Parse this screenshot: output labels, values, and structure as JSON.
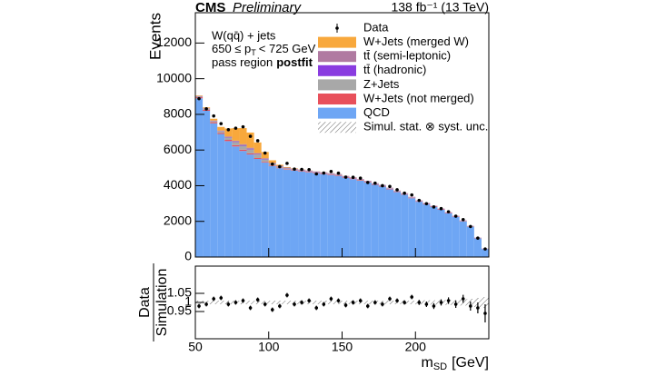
{
  "chart_data": [
    {
      "type": "stacked_histogram",
      "experiment": "CMS",
      "status": "Preliminary",
      "lumi": "138 fb⁻¹ (13 TeV)",
      "annotations": {
        "process": "W(qq̄) + jets",
        "pt_low": "650 ≤ p",
        "pt_sub": "T",
        "pt_high": "< 725 GeV",
        "region": "pass region",
        "fit": "postfit"
      },
      "ylabel": "Events",
      "bins": [
        50,
        55,
        60,
        65,
        70,
        75,
        80,
        85,
        90,
        95,
        100,
        105,
        110,
        115,
        120,
        125,
        130,
        135,
        140,
        145,
        150,
        155,
        160,
        165,
        170,
        175,
        180,
        185,
        190,
        195,
        200,
        205,
        210,
        215,
        220,
        225,
        230,
        235,
        240,
        245,
        250
      ],
      "xlim": [
        50,
        250
      ],
      "ylim": [
        0,
        13700
      ],
      "yticks": [
        0,
        2000,
        4000,
        6000,
        8000,
        10000,
        12000
      ],
      "series": [
        {
          "name": "QCD",
          "color": "#6ea6f4",
          "values": [
            8900,
            8200,
            7500,
            6900,
            6500,
            6200,
            5950,
            5750,
            5500,
            5300,
            5100,
            4980,
            4900,
            4850,
            4800,
            4750,
            4700,
            4650,
            4600,
            4550,
            4450,
            4370,
            4280,
            4180,
            4050,
            3950,
            3800,
            3650,
            3500,
            3300,
            3100,
            2950,
            2800,
            2650,
            2450,
            2250,
            2000,
            1700,
            1050,
            450
          ]
        },
        {
          "name": "W+Jets (not merged)",
          "color": "#e8505b",
          "values": [
            60,
            60,
            60,
            60,
            70,
            70,
            70,
            60,
            50,
            40,
            35,
            30,
            30,
            30,
            30,
            30,
            30,
            30,
            30,
            30,
            30,
            30,
            30,
            30,
            30,
            30,
            30,
            30,
            30,
            25,
            25,
            25,
            25,
            25,
            20,
            20,
            20,
            20,
            15,
            10
          ]
        },
        {
          "name": "Z+Jets",
          "color": "#a8a8a8",
          "values": [
            40,
            50,
            60,
            90,
            130,
            180,
            220,
            230,
            200,
            140,
            90,
            60,
            40,
            30,
            25,
            25,
            25,
            25,
            25,
            25,
            20,
            20,
            20,
            20,
            20,
            20,
            20,
            20,
            20,
            20,
            20,
            20,
            20,
            15,
            15,
            15,
            15,
            10,
            10,
            5
          ]
        },
        {
          "name": "tt̄ (hadronic)",
          "color": "#8a3ce0",
          "values": [
            10,
            10,
            10,
            15,
            20,
            25,
            30,
            30,
            25,
            20,
            15,
            15,
            15,
            15,
            15,
            15,
            15,
            15,
            15,
            15,
            15,
            15,
            15,
            15,
            15,
            15,
            10,
            10,
            10,
            10,
            10,
            10,
            10,
            10,
            10,
            10,
            10,
            5,
            5,
            5
          ]
        },
        {
          "name": "tt̄ (semi-leptonic)",
          "color": "#b07aa1",
          "values": [
            20,
            20,
            25,
            30,
            40,
            50,
            60,
            60,
            50,
            40,
            35,
            30,
            30,
            30,
            30,
            30,
            30,
            30,
            30,
            30,
            30,
            30,
            25,
            25,
            25,
            25,
            25,
            20,
            20,
            20,
            20,
            20,
            15,
            15,
            15,
            15,
            10,
            10,
            10,
            5
          ]
        },
        {
          "name": "W+Jets (merged W)",
          "color": "#f8a83c",
          "values": [
            30,
            50,
            100,
            200,
            450,
            700,
            900,
            850,
            600,
            350,
            150,
            60,
            30,
            20,
            10,
            5,
            5,
            5,
            5,
            5,
            5,
            5,
            5,
            0,
            0,
            0,
            0,
            0,
            0,
            0,
            0,
            0,
            0,
            0,
            0,
            0,
            0,
            0,
            0,
            0
          ]
        }
      ],
      "data": {
        "name": "Data",
        "color": "#000000",
        "values": [
          8880,
          8310,
          7910,
          7480,
          7140,
          7225,
          7300,
          6770,
          6520,
          5830,
          5210,
          5070,
          5250,
          4930,
          4910,
          4900,
          4660,
          4710,
          4800,
          4700,
          4480,
          4470,
          4420,
          4180,
          4140,
          4000,
          3960,
          3770,
          3580,
          3480,
          3175,
          2990,
          2810,
          2715,
          2540,
          2290,
          2100,
          1710,
          1060,
          450
        ]
      },
      "unc_name": "Simul. stat. ⊗ syst. unc.",
      "legend": "upper right"
    },
    {
      "type": "ratio",
      "ylabel": {
        "numerator": "Data",
        "denominator": "Simulation"
      },
      "xlabel": {
        "main": "m",
        "sub": "SD",
        "unit": "[GeV]"
      },
      "xlim": [
        50,
        250
      ],
      "xticks": [
        50,
        100,
        150,
        200
      ],
      "ylim": [
        0.8,
        1.2
      ],
      "yticks": [
        0.95,
        1,
        1.05
      ],
      "values": [
        0.98,
        0.99,
        1.02,
        1.025,
        0.99,
        1.0,
        1.01,
        0.97,
        1.015,
        0.99,
        0.96,
        0.98,
        1.04,
        0.99,
        1.0,
        1.01,
        0.97,
        0.99,
        1.02,
        1.01,
        0.985,
        1.0,
        1.01,
        0.98,
        1.0,
        0.99,
        1.02,
        1.01,
        1.0,
        1.03,
        1.0,
        0.99,
        0.98,
        1.0,
        1.01,
        0.99,
        1.02,
        0.98,
        0.97,
        0.94
      ],
      "errors": [
        0.012,
        0.012,
        0.012,
        0.012,
        0.012,
        0.012,
        0.012,
        0.012,
        0.012,
        0.012,
        0.012,
        0.012,
        0.012,
        0.012,
        0.012,
        0.012,
        0.012,
        0.012,
        0.012,
        0.012,
        0.012,
        0.012,
        0.012,
        0.012,
        0.012,
        0.012,
        0.012,
        0.012,
        0.012,
        0.012,
        0.014,
        0.015,
        0.016,
        0.017,
        0.018,
        0.02,
        0.022,
        0.025,
        0.03,
        0.05
      ],
      "mc_rel_unc": [
        0.01,
        0.01,
        0.01,
        0.01,
        0.01,
        0.01,
        0.01,
        0.01,
        0.01,
        0.01,
        0.01,
        0.01,
        0.01,
        0.01,
        0.01,
        0.01,
        0.01,
        0.01,
        0.01,
        0.01,
        0.01,
        0.01,
        0.01,
        0.01,
        0.01,
        0.01,
        0.01,
        0.01,
        0.01,
        0.01,
        0.011,
        0.012,
        0.012,
        0.013,
        0.014,
        0.015,
        0.017,
        0.02,
        0.025,
        0.03
      ]
    }
  ]
}
